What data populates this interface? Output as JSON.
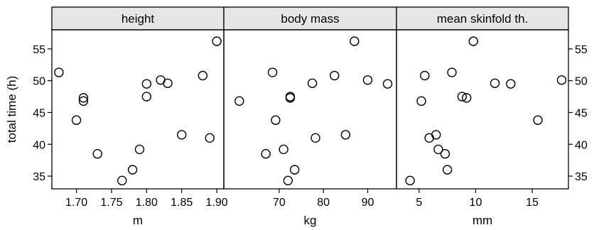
{
  "chart_data": {
    "type": "scatter",
    "ylabel": "total time (h)",
    "ylim": [
      33,
      58
    ],
    "yticks": [
      35,
      40,
      45,
      50,
      55
    ],
    "grid": false,
    "legend": "none",
    "marker": "open-circle",
    "panels": [
      {
        "title": "height",
        "xlabel": "m",
        "xlim": [
          1.665,
          1.91
        ],
        "xticks": [
          1.7,
          1.75,
          1.8,
          1.85,
          1.9
        ],
        "xticklabels": [
          "1.70",
          "1.75",
          "1.80",
          "1.85",
          "1.90"
        ],
        "points": [
          [
            1.675,
            51.3
          ],
          [
            1.7,
            43.8
          ],
          [
            1.71,
            47.3
          ],
          [
            1.71,
            46.8
          ],
          [
            1.73,
            38.5
          ],
          [
            1.765,
            34.3
          ],
          [
            1.78,
            36.0
          ],
          [
            1.79,
            39.2
          ],
          [
            1.8,
            49.5
          ],
          [
            1.8,
            47.5
          ],
          [
            1.82,
            50.1
          ],
          [
            1.83,
            49.6
          ],
          [
            1.85,
            41.5
          ],
          [
            1.88,
            50.8
          ],
          [
            1.89,
            41.0
          ],
          [
            1.9,
            56.2
          ]
        ]
      },
      {
        "title": "body mass",
        "xlabel": "kg",
        "xlim": [
          57.5,
          96.5
        ],
        "xticks": [
          70,
          80,
          90
        ],
        "xticklabels": [
          "70",
          "80",
          "90"
        ],
        "points": [
          [
            61,
            46.8
          ],
          [
            67,
            38.5
          ],
          [
            68.5,
            51.3
          ],
          [
            69.2,
            43.8
          ],
          [
            71,
            39.2
          ],
          [
            72,
            34.3
          ],
          [
            72.5,
            47.3
          ],
          [
            72.5,
            47.5
          ],
          [
            73.5,
            36.0
          ],
          [
            77.5,
            49.6
          ],
          [
            78.2,
            41.0
          ],
          [
            82.5,
            50.8
          ],
          [
            85,
            41.5
          ],
          [
            87,
            56.2
          ],
          [
            90,
            50.1
          ],
          [
            94.5,
            49.5
          ]
        ]
      },
      {
        "title": "mean skinfold th.",
        "xlabel": "mm",
        "xlim": [
          3.0,
          18.2
        ],
        "xticks": [
          5,
          10,
          15
        ],
        "xticklabels": [
          "5",
          "10",
          "15"
        ],
        "points": [
          [
            4.2,
            34.3
          ],
          [
            5.2,
            46.8
          ],
          [
            5.5,
            50.8
          ],
          [
            5.9,
            41.0
          ],
          [
            6.5,
            41.5
          ],
          [
            6.7,
            39.2
          ],
          [
            7.3,
            38.5
          ],
          [
            7.5,
            36.0
          ],
          [
            7.9,
            51.3
          ],
          [
            8.8,
            47.5
          ],
          [
            9.2,
            47.3
          ],
          [
            9.8,
            56.2
          ],
          [
            11.7,
            49.6
          ],
          [
            13.1,
            49.5
          ],
          [
            15.5,
            43.8
          ],
          [
            17.6,
            50.1
          ]
        ]
      }
    ]
  }
}
